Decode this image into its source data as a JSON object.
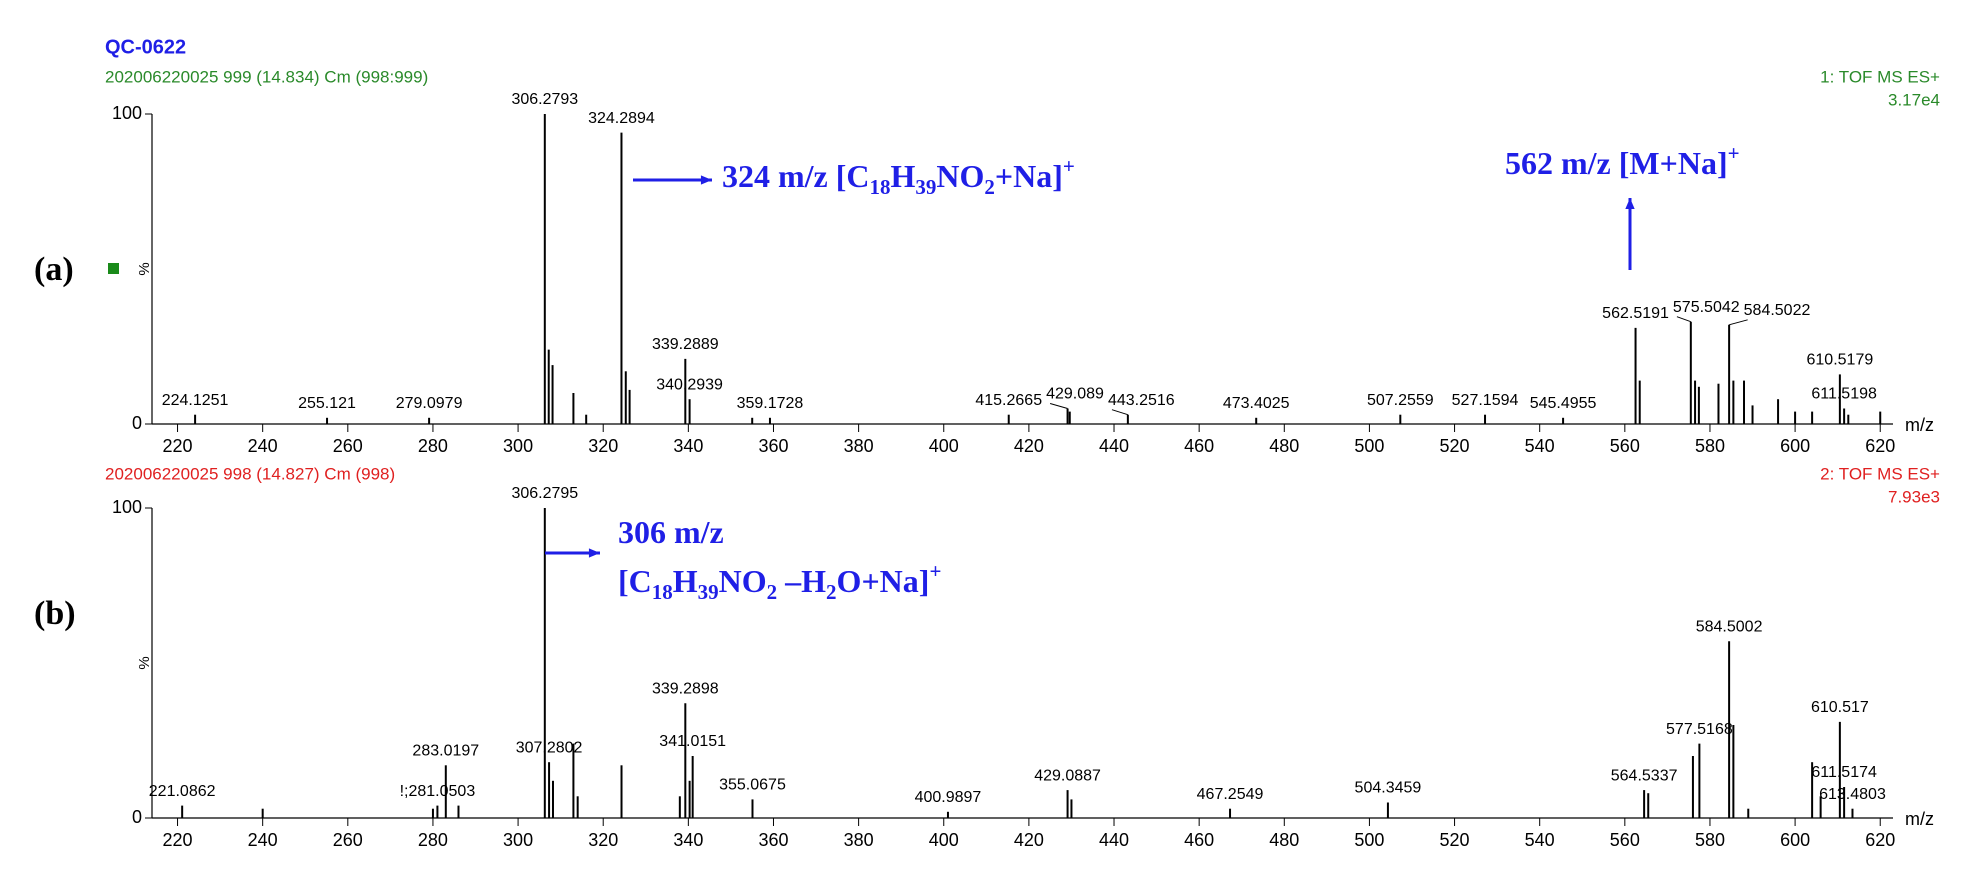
{
  "title": "QC-0622",
  "chart_data": [
    {
      "type": "spectrum",
      "panel_label": "(a)",
      "subtitle": "202006220025 999 (14.834) Cm (998:999)",
      "function_label": "1: TOF MS ES+",
      "intensity_label": "3.17e4",
      "header_color": "#2a8a2a",
      "color": "#000000",
      "xlabel": "m/z",
      "ylabel": "%",
      "xlim": [
        214,
        623
      ],
      "xticks": [
        220,
        240,
        260,
        280,
        300,
        320,
        340,
        360,
        380,
        400,
        420,
        440,
        460,
        480,
        500,
        520,
        540,
        560,
        580,
        600,
        620
      ],
      "ylim": [
        0,
        100
      ],
      "yticks": [
        0,
        100
      ],
      "peaks": {
        "x": [
          224.1251,
          255.121,
          279.0979,
          306.2793,
          324.2894,
          339.2889,
          340.2939,
          359.1728,
          415.2665,
          429.089,
          443.2516,
          473.4025,
          507.2559,
          527.1594,
          545.4955,
          562.5191,
          575.5042,
          584.5022,
          610.5179,
          611.5198
        ],
        "values": [
          3,
          2,
          2,
          100,
          94,
          21,
          8,
          2,
          3,
          5,
          3,
          2,
          3,
          3,
          2,
          31,
          33,
          32,
          16,
          5
        ]
      },
      "minor_peaks": {
        "x": [
          307.2,
          308.1,
          313.0,
          316.0,
          325.3,
          326.2,
          355.0,
          429.6,
          563.5,
          576.5,
          577.4,
          582.0,
          585.5,
          588.0,
          590.0,
          596.0,
          600.0,
          604.0,
          612.5,
          620.0
        ],
        "values": [
          24,
          19,
          10,
          3,
          17,
          11,
          2,
          4,
          14,
          14,
          12,
          13,
          14,
          14,
          6,
          8,
          4,
          4,
          3,
          4
        ]
      },
      "annotations": [
        {
          "color": "#1f1fe6",
          "lines": [
            [
              {
                "text": "324 m/z  [C"
              },
              {
                "text": "18",
                "sub": true
              },
              {
                "text": "H"
              },
              {
                "text": "39",
                "sub": true
              },
              {
                "text": "NO"
              },
              {
                "text": "2",
                "sub": true
              },
              {
                "text": "+Na]"
              },
              {
                "text": "+",
                "sup": true
              }
            ]
          ]
        },
        {
          "color": "#1f1fe6",
          "lines": [
            [
              {
                "text": "562 m/z  [M+Na]"
              },
              {
                "text": "+",
                "sup": true
              }
            ]
          ]
        }
      ]
    },
    {
      "type": "spectrum",
      "panel_label": "(b)",
      "subtitle": "202006220025 998 (14.827) Cm (998)",
      "function_label": "2: TOF MS ES+",
      "intensity_label": "7.93e3",
      "header_color": "#e02020",
      "color": "#000000",
      "xlabel": "m/z",
      "ylabel": "%",
      "xlim": [
        214,
        623
      ],
      "xticks": [
        220,
        240,
        260,
        280,
        300,
        320,
        340,
        360,
        380,
        400,
        420,
        440,
        460,
        480,
        500,
        520,
        540,
        560,
        580,
        600,
        620
      ],
      "ylim": [
        0,
        100
      ],
      "yticks": [
        0,
        100
      ],
      "peaks": {
        "x": [
          221.0862,
          {
            "value": 281.0503,
            "label": "!;281.0503"
          },
          283.0197,
          306.2795,
          307.2802,
          339.2898,
          341.0151,
          355.0675,
          400.9897,
          429.0887,
          467.2549,
          504.3459,
          564.5337,
          577.5168,
          584.5002,
          610.517,
          611.5174,
          613.4803
        ],
        "values": [
          4,
          4,
          17,
          100,
          18,
          37,
          20,
          6,
          2,
          9,
          3,
          5,
          9,
          24,
          57,
          31,
          10,
          3
        ]
      },
      "minor_peaks": {
        "x": [
          240.0,
          280.0,
          286.0,
          308.2,
          313.0,
          314.0,
          324.3,
          338.0,
          340.3,
          430.0,
          565.5,
          576.0,
          585.5,
          589.0,
          604.0,
          606.0
        ],
        "values": [
          3,
          3,
          4,
          12,
          24,
          7,
          17,
          7,
          12,
          6,
          8,
          20,
          30,
          3,
          18,
          7
        ]
      },
      "annotations": [
        {
          "color": "#1f1fe6",
          "lines": [
            [
              {
                "text": "306 m/z"
              }
            ],
            [
              {
                "text": "[C"
              },
              {
                "text": "18",
                "sub": true
              },
              {
                "text": "H"
              },
              {
                "text": "39",
                "sub": true
              },
              {
                "text": "NO"
              },
              {
                "text": "2",
                "sub": true
              },
              {
                "text": " –H"
              },
              {
                "text": "2",
                "sub": true
              },
              {
                "text": "O+Na]"
              },
              {
                "text": "+",
                "sup": true
              }
            ]
          ]
        }
      ]
    }
  ]
}
